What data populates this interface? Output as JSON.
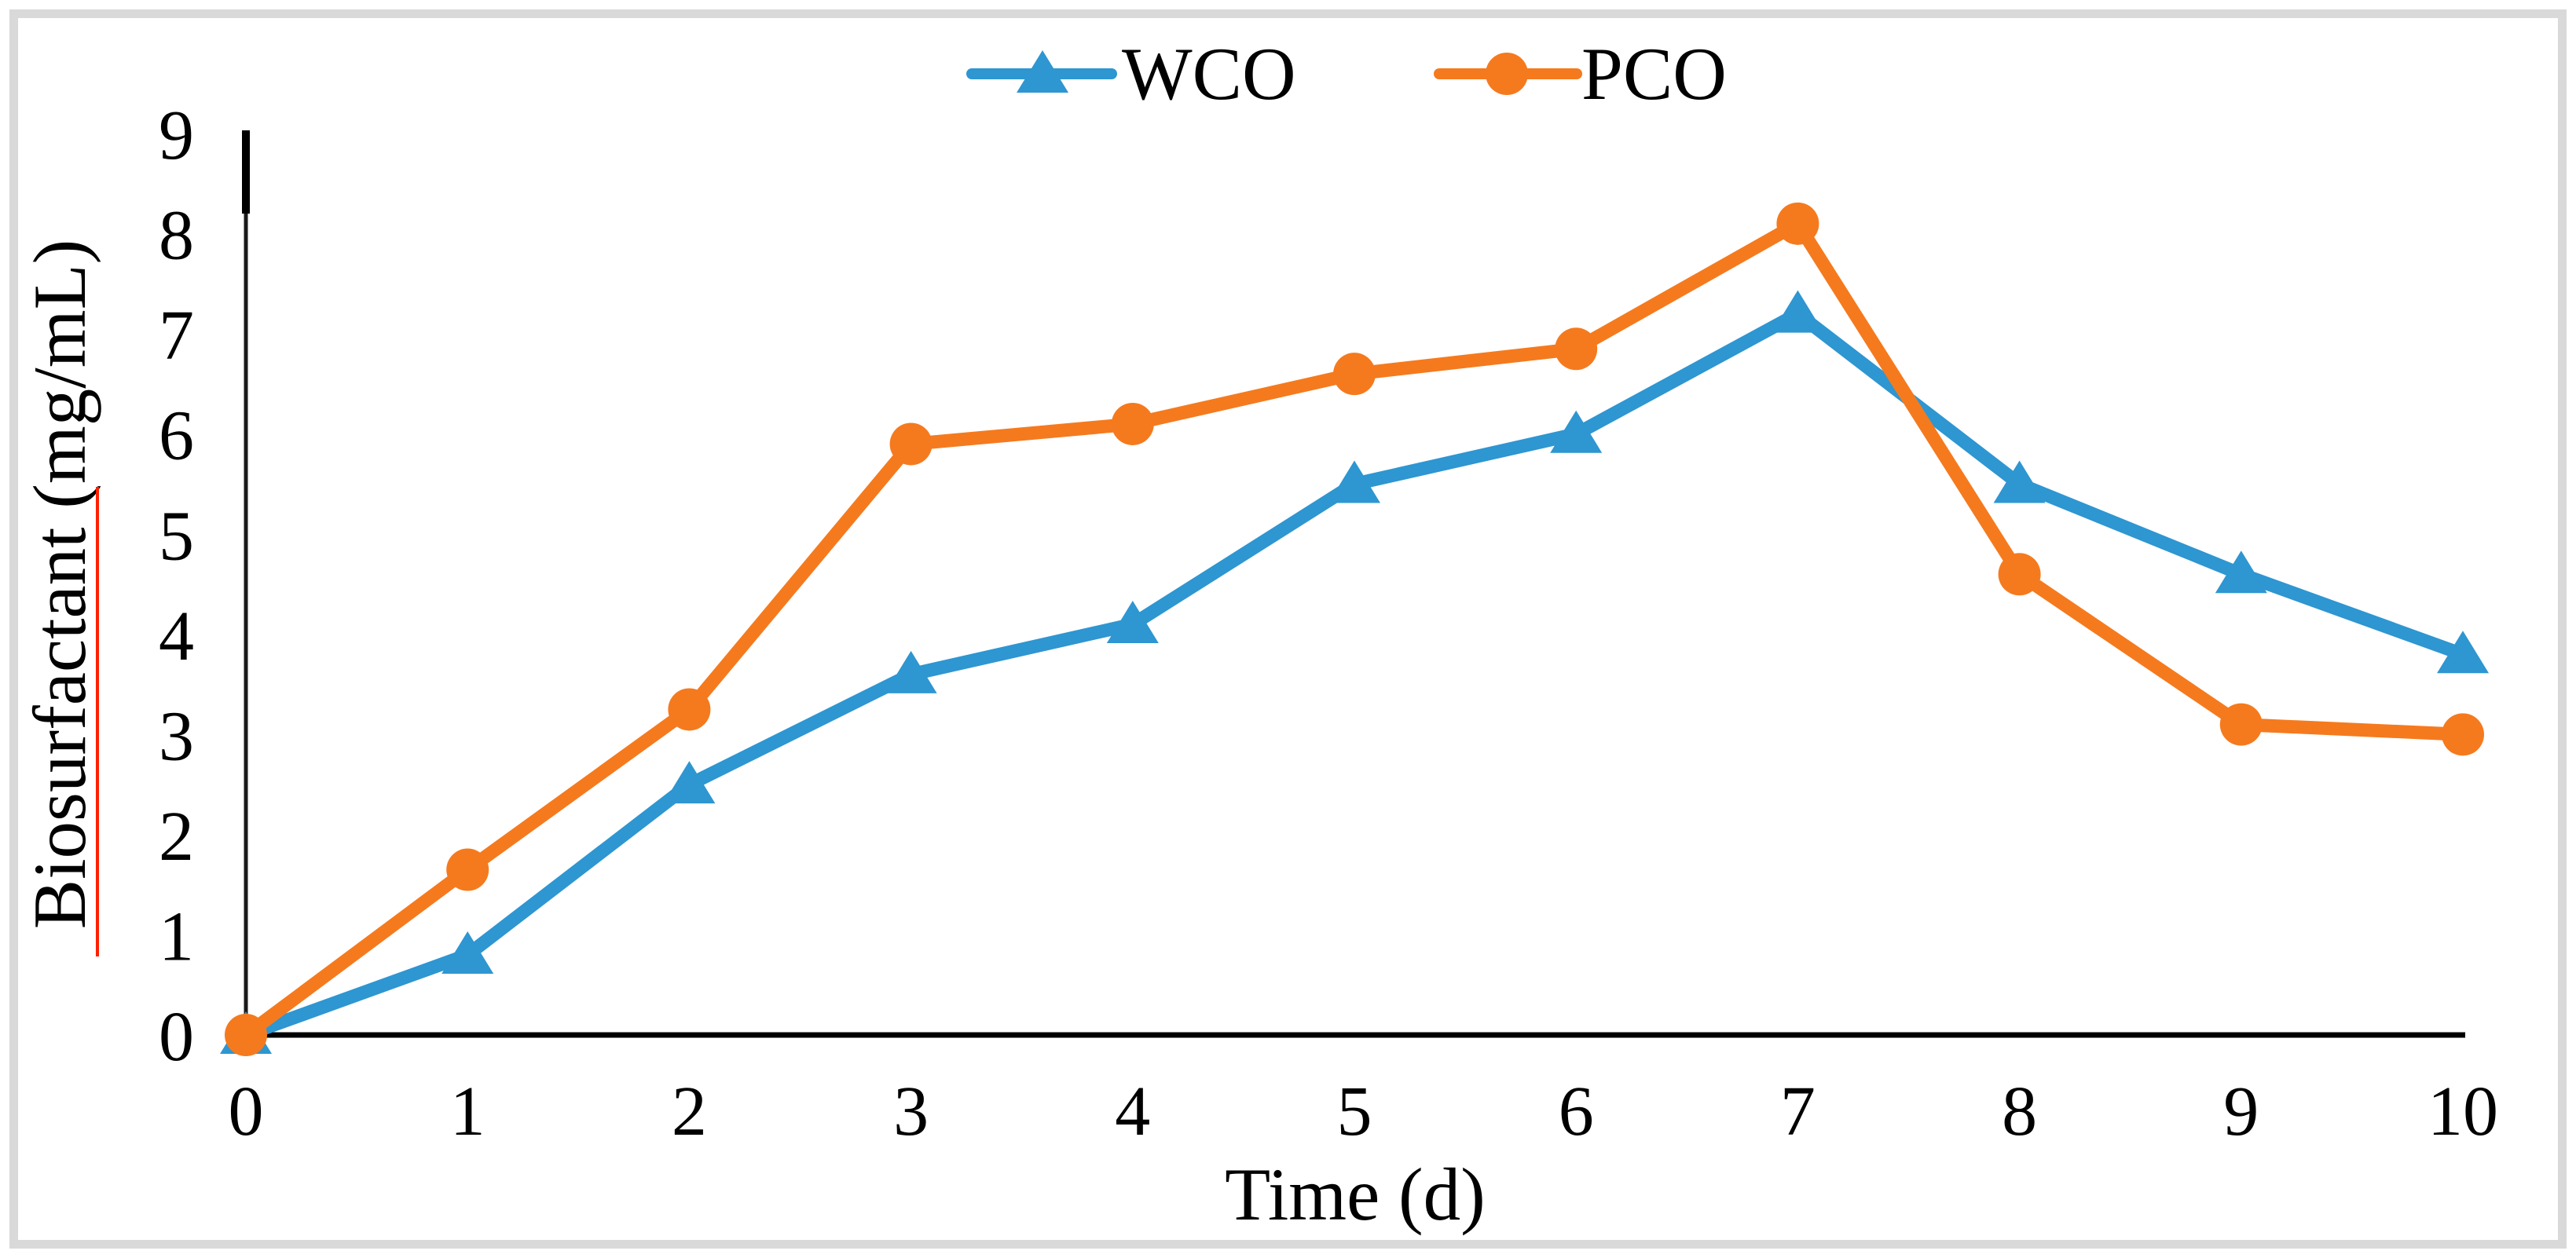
{
  "figure": {
    "background_color": "#ffffff",
    "frame_border_color": "#d9d9d9",
    "axis_color": "#000000",
    "text_color": "#000000"
  },
  "legend": {
    "position": "top-center",
    "items": [
      {
        "label": "WCO",
        "marker": "triangle",
        "color": "#2e96d1"
      },
      {
        "label": "PCO",
        "marker": "circle",
        "color": "#f57a1e"
      }
    ]
  },
  "chart_data": {
    "type": "line",
    "title": "",
    "xlabel": "Time (d)",
    "ylabel": "Biosurfactant (mg/mL)",
    "x": [
      0,
      1,
      2,
      3,
      4,
      5,
      6,
      7,
      8,
      9,
      10
    ],
    "series": [
      {
        "name": "WCO",
        "color": "#2e96d1",
        "marker": "triangle",
        "values": [
          0,
          0.8,
          2.5,
          3.6,
          4.1,
          5.5,
          6.0,
          7.2,
          5.5,
          4.6,
          3.8
        ]
      },
      {
        "name": "PCO",
        "color": "#f57a1e",
        "marker": "circle",
        "values": [
          0,
          1.65,
          3.25,
          5.9,
          6.1,
          6.6,
          6.85,
          8.1,
          4.6,
          3.1,
          3.0
        ]
      }
    ],
    "x_tick_labels": [
      "0",
      "1",
      "2",
      "3",
      "4",
      "5",
      "6",
      "7",
      "8",
      "9",
      "10"
    ],
    "y_tick_labels": [
      "0",
      "1",
      "2",
      "3",
      "4",
      "5",
      "6",
      "7",
      "8",
      "9"
    ],
    "xlim": [
      0,
      10
    ],
    "ylim": [
      0,
      9
    ],
    "grid": false,
    "legend_position": "top-center",
    "ylabel_spellcheck_underline_color": "#ff1f00"
  }
}
